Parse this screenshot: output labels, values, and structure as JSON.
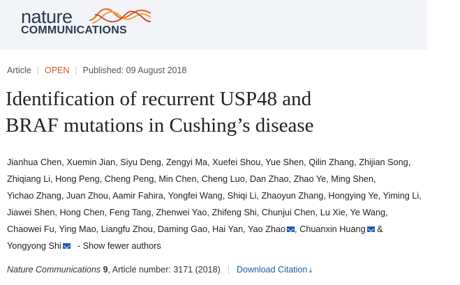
{
  "header": {
    "logo_line1": "nature",
    "logo_line2": "COMMUNICATIONS"
  },
  "meta": {
    "type": "Article",
    "access": "OPEN",
    "published": "Published: 09 August 2018"
  },
  "title_line1": "Identification of recurrent USP48 and",
  "title_line2": "BRAF mutations in Cushing’s disease",
  "authors": [
    {
      "name": "Jianhua Chen",
      "mail": false
    },
    {
      "name": "Xuemin Jian",
      "mail": false
    },
    {
      "name": "Siyu Deng",
      "mail": false
    },
    {
      "name": "Zengyi Ma",
      "mail": false
    },
    {
      "name": "Xuefei Shou",
      "mail": false
    },
    {
      "name": "Yue Shen",
      "mail": false
    },
    {
      "name": "Qilin Zhang",
      "mail": false
    },
    {
      "name": "Zhijian Song",
      "mail": false
    },
    {
      "name": "Zhiqiang Li",
      "mail": false
    },
    {
      "name": "Hong Peng",
      "mail": false
    },
    {
      "name": "Cheng Peng",
      "mail": false
    },
    {
      "name": "Min Chen",
      "mail": false
    },
    {
      "name": "Cheng Luo",
      "mail": false
    },
    {
      "name": "Dan Zhao",
      "mail": false
    },
    {
      "name": "Zhao Ye",
      "mail": false
    },
    {
      "name": "Ming Shen",
      "mail": false
    },
    {
      "name": "Yichao Zhang",
      "mail": false
    },
    {
      "name": "Juan Zhou",
      "mail": false
    },
    {
      "name": "Aamir Fahira",
      "mail": false
    },
    {
      "name": "Yongfei Wang",
      "mail": false
    },
    {
      "name": "Shiqi Li",
      "mail": false
    },
    {
      "name": "Zhaoyun Zhang",
      "mail": false
    },
    {
      "name": "Hongying Ye",
      "mail": false
    },
    {
      "name": "Yiming Li",
      "mail": false
    },
    {
      "name": "Jiawei Shen",
      "mail": false
    },
    {
      "name": "Hong Chen",
      "mail": false
    },
    {
      "name": "Feng Tang",
      "mail": false
    },
    {
      "name": "Zhenwei Yao",
      "mail": false
    },
    {
      "name": "Zhifeng Shi",
      "mail": false
    },
    {
      "name": "Chunjui Chen",
      "mail": false
    },
    {
      "name": "Lu Xie",
      "mail": false
    },
    {
      "name": "Ye Wang",
      "mail": false
    },
    {
      "name": "Chaowei Fu",
      "mail": false
    },
    {
      "name": "Ying Mao",
      "mail": false
    },
    {
      "name": "Liangfu Zhou",
      "mail": false
    },
    {
      "name": "Daming Gao",
      "mail": false
    },
    {
      "name": "Hai Yan",
      "mail": false
    },
    {
      "name": "Yao Zhao",
      "mail": true
    },
    {
      "name": "Chuanxin Huang",
      "mail": true
    },
    {
      "name": "Yongyong Shi",
      "mail": true
    }
  ],
  "show_fewer": "- Show fewer authors",
  "citation": {
    "journal": "Nature Communications",
    "volume": "9",
    "article": ", Article number: 3171 (2018)",
    "download": "Download Citation"
  },
  "colors": {
    "header_bg": "#f2f4f7",
    "open": "#d15a2a",
    "link": "#1f5fa3"
  }
}
